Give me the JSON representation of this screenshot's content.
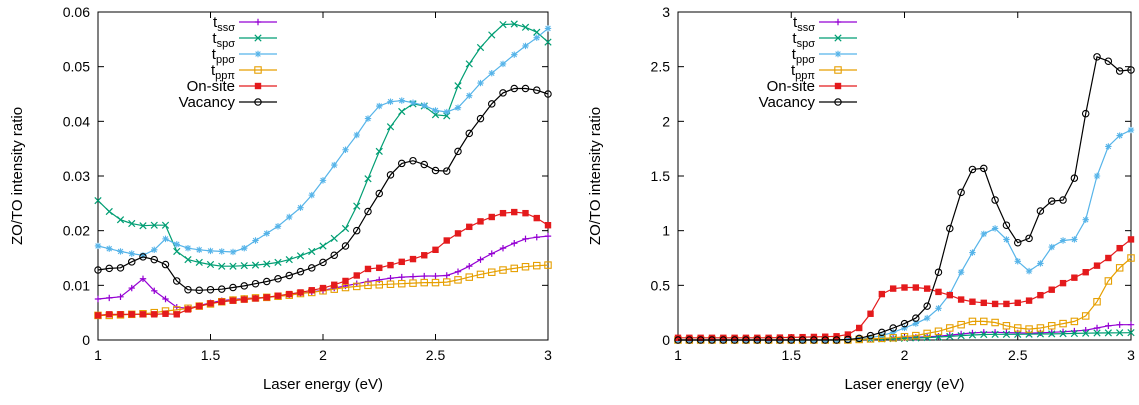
{
  "chart_data": [
    {
      "type": "line",
      "xlabel": "Laser energy (eV)",
      "ylabel": "ZO/TO intensity ratio",
      "xlim": [
        1,
        3
      ],
      "ylim": [
        0,
        0.06
      ],
      "xticks": [
        "1",
        "1.5",
        "2",
        "2.5",
        "3"
      ],
      "yticks": [
        "0",
        "0.01",
        "0.02",
        "0.03",
        "0.04",
        "0.05",
        "0.06"
      ],
      "legend_position": "top-left",
      "grid": false,
      "x": [
        1.0,
        1.05,
        1.1,
        1.15,
        1.2,
        1.25,
        1.3,
        1.35,
        1.4,
        1.45,
        1.5,
        1.55,
        1.6,
        1.65,
        1.7,
        1.75,
        1.8,
        1.85,
        1.9,
        1.95,
        2.0,
        2.05,
        2.1,
        2.15,
        2.2,
        2.25,
        2.3,
        2.35,
        2.4,
        2.45,
        2.5,
        2.55,
        2.6,
        2.65,
        2.7,
        2.75,
        2.8,
        2.85,
        2.9,
        2.95,
        3.0
      ],
      "series": [
        {
          "base": "t",
          "sub": "ssσ",
          "color": "#9400d3",
          "marker": "plus",
          "values": [
            0.0075,
            0.0077,
            0.0079,
            0.0095,
            0.0112,
            0.009,
            0.0075,
            0.006,
            0.0058,
            0.0063,
            0.0068,
            0.0072,
            0.0074,
            0.0076,
            0.0077,
            0.0078,
            0.008,
            0.0082,
            0.0085,
            0.0088,
            0.0091,
            0.0095,
            0.0099,
            0.0103,
            0.0107,
            0.011,
            0.0113,
            0.0115,
            0.0116,
            0.0117,
            0.0117,
            0.0118,
            0.0125,
            0.0135,
            0.0147,
            0.0158,
            0.0168,
            0.0177,
            0.0185,
            0.0188,
            0.019
          ]
        },
        {
          "base": "t",
          "sub": "spσ",
          "color": "#009e73",
          "marker": "x",
          "values": [
            0.0255,
            0.0235,
            0.022,
            0.0213,
            0.0209,
            0.021,
            0.021,
            0.0162,
            0.0147,
            0.0142,
            0.0138,
            0.0135,
            0.0135,
            0.0136,
            0.0137,
            0.0139,
            0.0142,
            0.0147,
            0.0154,
            0.0162,
            0.0172,
            0.0186,
            0.0204,
            0.0245,
            0.0295,
            0.0345,
            0.039,
            0.0418,
            0.0432,
            0.0428,
            0.0412,
            0.041,
            0.0465,
            0.0505,
            0.0535,
            0.0558,
            0.0577,
            0.0578,
            0.0572,
            0.0563,
            0.0545
          ]
        },
        {
          "base": "t",
          "sub": "ppσ",
          "color": "#56b4e9",
          "marker": "star",
          "values": [
            0.0172,
            0.0167,
            0.0162,
            0.0158,
            0.0155,
            0.0165,
            0.0185,
            0.0175,
            0.0168,
            0.0165,
            0.0163,
            0.0162,
            0.0161,
            0.0168,
            0.0182,
            0.0195,
            0.0208,
            0.0225,
            0.0242,
            0.0265,
            0.0292,
            0.032,
            0.0348,
            0.0375,
            0.0405,
            0.0428,
            0.0436,
            0.0438,
            0.0434,
            0.0429,
            0.042,
            0.0417,
            0.0425,
            0.0447,
            0.047,
            0.0488,
            0.0505,
            0.0522,
            0.0538,
            0.0553,
            0.057
          ]
        },
        {
          "base": "t",
          "sub": "ppπ",
          "color": "#e69f00",
          "marker": "open-square",
          "values": [
            0.0045,
            0.0045,
            0.0046,
            0.0047,
            0.0048,
            0.005,
            0.0053,
            0.0055,
            0.0058,
            0.0062,
            0.0066,
            0.007,
            0.0073,
            0.0075,
            0.0077,
            0.0078,
            0.008,
            0.0082,
            0.0085,
            0.0087,
            0.009,
            0.0093,
            0.0096,
            0.0098,
            0.01,
            0.0101,
            0.0102,
            0.0103,
            0.0104,
            0.0105,
            0.0105,
            0.0106,
            0.011,
            0.0115,
            0.012,
            0.0124,
            0.0128,
            0.0131,
            0.0134,
            0.0136,
            0.0137
          ]
        },
        {
          "base": "On-site",
          "sub": "",
          "color": "#e41a1c",
          "marker": "filled-square",
          "values": [
            0.0045,
            0.0047,
            0.0047,
            0.0047,
            0.0047,
            0.0047,
            0.0048,
            0.0047,
            0.0056,
            0.0062,
            0.0067,
            0.007,
            0.0072,
            0.0074,
            0.0076,
            0.0078,
            0.0081,
            0.0084,
            0.0087,
            0.0091,
            0.0095,
            0.0101,
            0.0108,
            0.0118,
            0.013,
            0.0132,
            0.0137,
            0.0143,
            0.0148,
            0.0155,
            0.0165,
            0.0182,
            0.0195,
            0.0207,
            0.0217,
            0.0225,
            0.0232,
            0.0234,
            0.0232,
            0.0223,
            0.021
          ]
        },
        {
          "base": "Vacancy",
          "sub": "",
          "color": "#000000",
          "marker": "open-circle",
          "values": [
            0.0128,
            0.0131,
            0.0132,
            0.0143,
            0.0152,
            0.0147,
            0.0138,
            0.0108,
            0.0092,
            0.0091,
            0.0092,
            0.0093,
            0.0096,
            0.0099,
            0.0103,
            0.0107,
            0.0112,
            0.0118,
            0.0125,
            0.0132,
            0.0142,
            0.0155,
            0.0172,
            0.02,
            0.0235,
            0.0268,
            0.0302,
            0.0323,
            0.0328,
            0.0321,
            0.031,
            0.0309,
            0.0345,
            0.0378,
            0.0405,
            0.0432,
            0.0452,
            0.046,
            0.046,
            0.0457,
            0.045
          ]
        }
      ]
    },
    {
      "type": "line",
      "xlabel": "Laser energy (eV)",
      "ylabel": "ZO/TO intensity ratio",
      "xlim": [
        1,
        3
      ],
      "ylim": [
        0,
        3
      ],
      "xticks": [
        "1",
        "1.5",
        "2",
        "2.5",
        "3"
      ],
      "yticks": [
        "0",
        "0.5",
        "1",
        "1.5",
        "2",
        "2.5",
        "3"
      ],
      "legend_position": "top-left",
      "grid": false,
      "x": [
        1.0,
        1.05,
        1.1,
        1.15,
        1.2,
        1.25,
        1.3,
        1.35,
        1.4,
        1.45,
        1.5,
        1.55,
        1.6,
        1.65,
        1.7,
        1.75,
        1.8,
        1.85,
        1.9,
        1.95,
        2.0,
        2.05,
        2.1,
        2.15,
        2.2,
        2.25,
        2.3,
        2.35,
        2.4,
        2.45,
        2.5,
        2.55,
        2.6,
        2.65,
        2.7,
        2.75,
        2.8,
        2.85,
        2.9,
        2.95,
        3.0
      ],
      "series": [
        {
          "base": "t",
          "sub": "ssσ",
          "color": "#9400d3",
          "marker": "plus",
          "values": [
            0.0,
            0.0,
            0.0,
            0.0,
            0.0,
            0.0,
            0.0,
            0.0,
            0.0,
            0.0,
            0.0,
            0.0,
            0.0,
            0.0,
            0.002,
            0.004,
            0.006,
            0.008,
            0.012,
            0.016,
            0.02,
            0.025,
            0.03,
            0.035,
            0.045,
            0.055,
            0.065,
            0.07,
            0.07,
            0.068,
            0.065,
            0.063,
            0.066,
            0.07,
            0.075,
            0.082,
            0.09,
            0.11,
            0.13,
            0.14,
            0.14
          ]
        },
        {
          "base": "t",
          "sub": "spσ",
          "color": "#009e73",
          "marker": "x",
          "values": [
            0.0,
            0.0,
            0.0,
            0.0,
            0.0,
            0.0,
            0.0,
            0.0,
            0.0,
            0.0,
            0.0,
            0.0,
            0.0,
            0.0,
            0.002,
            0.004,
            0.006,
            0.008,
            0.01,
            0.012,
            0.015,
            0.018,
            0.022,
            0.027,
            0.033,
            0.04,
            0.046,
            0.05,
            0.052,
            0.052,
            0.052,
            0.053,
            0.055,
            0.056,
            0.058,
            0.06,
            0.062,
            0.064,
            0.065,
            0.066,
            0.067
          ]
        },
        {
          "base": "t",
          "sub": "ppσ",
          "color": "#56b4e9",
          "marker": "star",
          "values": [
            0.0,
            0.0,
            0.0,
            0.0,
            0.0,
            0.0,
            0.0,
            0.0,
            0.0,
            0.0,
            0.0,
            0.0,
            0.0,
            0.0,
            0.0,
            0.005,
            0.01,
            0.02,
            0.04,
            0.07,
            0.11,
            0.15,
            0.2,
            0.29,
            0.42,
            0.62,
            0.8,
            0.97,
            1.02,
            0.92,
            0.72,
            0.63,
            0.7,
            0.85,
            0.91,
            0.92,
            1.1,
            1.5,
            1.77,
            1.87,
            1.92
          ]
        },
        {
          "base": "t",
          "sub": "ppπ",
          "color": "#e69f00",
          "marker": "open-square",
          "values": [
            0.0,
            0.0,
            0.0,
            0.0,
            0.0,
            0.0,
            0.0,
            0.0,
            0.0,
            0.0,
            0.0,
            0.0,
            0.0,
            0.0,
            0.0,
            0.0,
            0.005,
            0.01,
            0.015,
            0.02,
            0.03,
            0.04,
            0.06,
            0.08,
            0.11,
            0.14,
            0.17,
            0.17,
            0.16,
            0.13,
            0.11,
            0.1,
            0.11,
            0.13,
            0.15,
            0.17,
            0.22,
            0.35,
            0.54,
            0.66,
            0.75
          ]
        },
        {
          "base": "On-site",
          "sub": "",
          "color": "#e41a1c",
          "marker": "filled-square",
          "values": [
            0.02,
            0.02,
            0.02,
            0.02,
            0.02,
            0.02,
            0.02,
            0.02,
            0.02,
            0.022,
            0.024,
            0.026,
            0.028,
            0.03,
            0.034,
            0.05,
            0.11,
            0.24,
            0.42,
            0.47,
            0.48,
            0.48,
            0.47,
            0.44,
            0.41,
            0.37,
            0.35,
            0.34,
            0.33,
            0.33,
            0.34,
            0.36,
            0.41,
            0.46,
            0.52,
            0.57,
            0.62,
            0.68,
            0.75,
            0.84,
            0.92
          ]
        },
        {
          "base": "Vacancy",
          "sub": "",
          "color": "#000000",
          "marker": "open-circle",
          "values": [
            0.0,
            0.0,
            0.0,
            0.0,
            0.0,
            0.0,
            0.0,
            0.0,
            0.0,
            0.0,
            0.0,
            0.0,
            0.0,
            0.0,
            0.0,
            0.005,
            0.015,
            0.04,
            0.07,
            0.11,
            0.15,
            0.2,
            0.31,
            0.62,
            1.02,
            1.35,
            1.56,
            1.57,
            1.28,
            1.05,
            0.89,
            0.93,
            1.18,
            1.27,
            1.28,
            1.48,
            2.07,
            2.59,
            2.55,
            2.46,
            2.47
          ]
        }
      ]
    }
  ]
}
